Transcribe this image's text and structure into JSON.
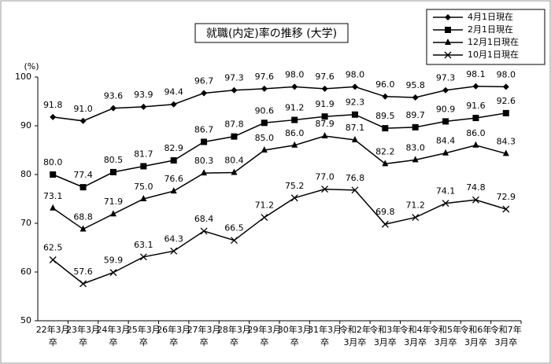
{
  "chart_data": {
    "type": "line",
    "title": "就職(内定)率の推移 (大学)",
    "y_unit": "(%)",
    "categories": [
      "22年3月卒",
      "23年3月卒",
      "24年3月卒",
      "25年3月卒",
      "26年3月卒",
      "27年3月卒",
      "28年3月卒",
      "29年3月卒",
      "30年3月卒",
      "31年3月卒",
      "令和2年3月卒",
      "令和3年3月卒",
      "令和4年3月卒",
      "令和5年3月卒",
      "令和6年3月卒",
      "令和7年3月卒"
    ],
    "series": [
      {
        "name": "4月1日現在",
        "color": "#000000",
        "marker": "diamond",
        "values": [
          91.8,
          91.0,
          93.6,
          93.9,
          94.4,
          96.7,
          97.3,
          97.6,
          98.0,
          97.6,
          98.0,
          96.0,
          95.8,
          97.3,
          98.1,
          98.0
        ],
        "value_labels": [
          "91.8",
          "91.0",
          "93.6",
          "93.9",
          "94.4",
          "96.7",
          "97.3",
          "97.6",
          "98.0",
          "97.6",
          "98.0",
          "96.0",
          "95.8",
          "97.3",
          "98.1",
          "98.0"
        ]
      },
      {
        "name": "2月1日現在",
        "color": "#000000",
        "marker": "square",
        "values": [
          80.0,
          77.4,
          80.5,
          81.7,
          82.9,
          86.7,
          87.8,
          90.6,
          91.2,
          91.9,
          92.3,
          89.5,
          89.7,
          90.9,
          91.6,
          92.6
        ],
        "value_labels": [
          "80.0",
          "77.4",
          "80.5",
          "81.7",
          "82.9",
          "86.7",
          "87.8",
          "90.6",
          "91.2",
          "91.9",
          "92.3",
          "89.5",
          "89.7",
          "90.9",
          "91.6",
          "92.6"
        ]
      },
      {
        "name": "12月1日現在",
        "color": "#000000",
        "marker": "triangle",
        "values": [
          73.1,
          68.8,
          71.9,
          75.0,
          76.6,
          80.3,
          80.4,
          85.0,
          86.0,
          87.9,
          87.1,
          82.2,
          83.0,
          84.4,
          86.0,
          84.3
        ],
        "value_labels": [
          "73.1",
          "68.8",
          "71.9",
          "75.0",
          "76.6",
          "80.3",
          "80.4",
          "85.0",
          "86.0",
          "87.9",
          "87.1",
          "82.2",
          "83.0",
          "84.4",
          "86.0",
          "84.3"
        ]
      },
      {
        "name": "10月1日現在",
        "color": "#000000",
        "marker": "x",
        "values": [
          62.5,
          57.6,
          59.9,
          63.1,
          64.3,
          68.4,
          66.5,
          71.2,
          75.2,
          77.0,
          76.8,
          69.8,
          71.2,
          74.1,
          74.8,
          72.9
        ],
        "value_labels": [
          "62.5",
          "57.6",
          "59.9",
          "63.1",
          "64.3",
          "68.4",
          "66.5",
          "71.2",
          "75.2",
          "77.0",
          "76.8",
          "69.8",
          "71.2",
          "74.1",
          "74.8",
          "72.9"
        ]
      }
    ],
    "ylim": [
      50,
      100
    ],
    "yticks": [
      50,
      60,
      70,
      80,
      90,
      100
    ],
    "grid": false,
    "legend": "top-right"
  }
}
